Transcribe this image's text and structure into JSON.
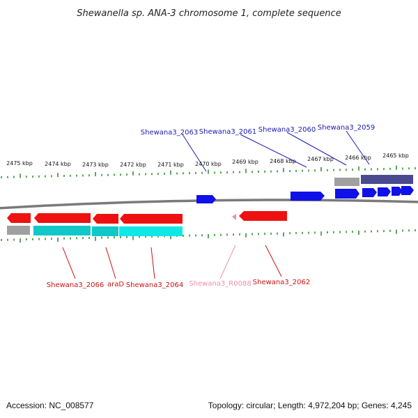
{
  "title": "Shewanella sp. ANA-3 chromosome 1, complete sequence",
  "footer": {
    "accession": "Accession: NC_008577",
    "topology": "Topology: circular; Length: 4,972,204 bp; Genes: 4,245"
  },
  "colors": {
    "forward_gene": "#1010e8",
    "reverse_gene": "#ee1111",
    "cds_reverse": "#10c8c8",
    "cds_forward": "#4a4a90",
    "pseudo": "#f08ab8",
    "gray_feature": "#a0a0a0",
    "ticks": "#228822",
    "backbone": "#7a7a7a",
    "label_forward": "#1a1ab0",
    "label_reverse": "#cc1111",
    "label_pseudo": "#e890b0"
  },
  "scale_labels": [
    "2475 kbp",
    "2474 kbp",
    "2473 kbp",
    "2472 kbp",
    "2471 kbp",
    "2470 kbp",
    "2469 kbp",
    "2468 kbp",
    "2467 kbp",
    "2466 kbp",
    "2465 kbp"
  ],
  "top_genes": [
    {
      "label": "Shewana3_2063"
    },
    {
      "label": "Shewana3_2061"
    },
    {
      "label": "Shewana3_2060"
    },
    {
      "label": "Shewana3_2059"
    }
  ],
  "bottom_genes": [
    {
      "label": "Shewana3_2066"
    },
    {
      "label": "araD"
    },
    {
      "label": "Shewana3_2064"
    },
    {
      "label": "Shewana3_R0088"
    },
    {
      "label": "Shewana3_2062"
    }
  ]
}
